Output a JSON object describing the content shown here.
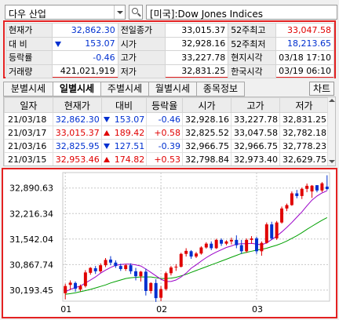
{
  "header": {
    "index_name": "다우 산업",
    "title": "[미국]:Dow Jones Indices"
  },
  "quote": {
    "rows": [
      [
        {
          "label": "현재가",
          "value": "32,862.30",
          "color": "blue"
        },
        {
          "label": "전일종가",
          "value": "33,015.37",
          "color": "black"
        },
        {
          "label": "52주최고",
          "value": "33,047.58",
          "color": "red"
        }
      ],
      [
        {
          "label": "대 비",
          "value": "153.07",
          "color": "blue",
          "arrow": "down"
        },
        {
          "label": "시가",
          "value": "32,928.16",
          "color": "black"
        },
        {
          "label": "52주최저",
          "value": "18,213.65",
          "color": "blue"
        }
      ],
      [
        {
          "label": "등락률",
          "value": "-0.46",
          "color": "blue"
        },
        {
          "label": "고가",
          "value": "33,227.78",
          "color": "black"
        },
        {
          "label": "현지시각",
          "value": "03/18 17:10",
          "color": "black"
        }
      ],
      [
        {
          "label": "거래량",
          "value": "421,021,919",
          "color": "black"
        },
        {
          "label": "저가",
          "value": "32,831.25",
          "color": "black"
        },
        {
          "label": "한국시각",
          "value": "03/19 06:10",
          "color": "black"
        }
      ]
    ]
  },
  "tabs": [
    "분별시세",
    "일별시세",
    "주별시세",
    "월별시세",
    "종목정보"
  ],
  "active_tab": 1,
  "chart_button": "차트",
  "table": {
    "columns": [
      "일자",
      "현재가",
      "대비",
      "등락율",
      "시가",
      "고가",
      "저가"
    ],
    "rows": [
      {
        "date": "21/03/18",
        "price": "32,862.30",
        "change": "153.07",
        "dir": "down",
        "rate": "-0.46",
        "open": "32,928.16",
        "high": "33,227.78",
        "low": "32,831.25"
      },
      {
        "date": "21/03/17",
        "price": "33,015.37",
        "change": "189.42",
        "dir": "up",
        "rate": "+0.58",
        "open": "32,825.52",
        "high": "33,047.58",
        "low": "32,782.18"
      },
      {
        "date": "21/03/16",
        "price": "32,825.95",
        "change": "127.51",
        "dir": "down",
        "rate": "-0.39",
        "open": "32,966.75",
        "high": "32,966.75",
        "low": "32,778.23"
      },
      {
        "date": "21/03/15",
        "price": "32,953.46",
        "change": "174.82",
        "dir": "up",
        "rate": "+0.53",
        "open": "32,798.84",
        "high": "32,973.40",
        "low": "32,629.75"
      }
    ]
  },
  "colors": {
    "up": "#e00000",
    "down": "#0030d0",
    "ma_short": "#9a00c8",
    "ma_long": "#00a000",
    "highlight": "#e32222"
  },
  "chart_data": {
    "type": "candlestick",
    "ylim": [
      29900,
      33300
    ],
    "yticks": [
      30193.45,
      30867.74,
      31542.04,
      32216.34,
      32890.63
    ],
    "ytick_labels": [
      "30,193.45",
      "30,867.74",
      "31,542.04",
      "32,216.34",
      "32,890.63"
    ],
    "xticks": [
      {
        "index": 0,
        "label": "01"
      },
      {
        "index": 19,
        "label": "02"
      },
      {
        "index": 38,
        "label": "03"
      }
    ],
    "candles": [
      [
        30110,
        30360,
        29950,
        30300
      ],
      [
        30330,
        30450,
        30200,
        30390
      ],
      [
        30380,
        30420,
        30150,
        30230
      ],
      [
        30210,
        30340,
        30160,
        30300
      ],
      [
        30300,
        30720,
        30260,
        30660
      ],
      [
        30650,
        30800,
        30600,
        30780
      ],
      [
        30770,
        30830,
        30620,
        30690
      ],
      [
        30690,
        30900,
        30650,
        30850
      ],
      [
        30850,
        31040,
        30800,
        30990
      ],
      [
        31000,
        31090,
        30850,
        30920
      ],
      [
        30920,
        30980,
        30780,
        30830
      ],
      [
        30830,
        30890,
        30700,
        30750
      ],
      [
        30750,
        30880,
        30700,
        30850
      ],
      [
        30850,
        30900,
        30620,
        30690
      ],
      [
        30690,
        30780,
        30450,
        30560
      ],
      [
        30560,
        30700,
        30420,
        30680
      ],
      [
        30680,
        30760,
        30050,
        30170
      ],
      [
        30170,
        30400,
        30100,
        30380
      ],
      [
        30380,
        30480,
        29880,
        29980
      ],
      [
        29990,
        30300,
        29900,
        30220
      ],
      [
        30220,
        30680,
        30180,
        30640
      ],
      [
        30640,
        30830,
        30580,
        30790
      ],
      [
        30790,
        30880,
        30700,
        30810
      ],
      [
        30810,
        31180,
        30790,
        31150
      ],
      [
        31150,
        31300,
        31080,
        31230
      ],
      [
        31220,
        31250,
        31020,
        31080
      ],
      [
        31080,
        31200,
        31040,
        31160
      ],
      [
        31160,
        31350,
        31130,
        31320
      ],
      [
        31320,
        31460,
        31290,
        31420
      ],
      [
        31420,
        31480,
        31250,
        31300
      ],
      [
        31300,
        31550,
        31280,
        31520
      ],
      [
        31520,
        31560,
        31360,
        31420
      ],
      [
        31420,
        31510,
        31380,
        31480
      ],
      [
        31480,
        31580,
        31400,
        31520
      ],
      [
        31520,
        31640,
        31300,
        31380
      ],
      [
        31380,
        31520,
        31150,
        31220
      ],
      [
        31220,
        31560,
        31180,
        31520
      ],
      [
        31520,
        31620,
        31420,
        31560
      ],
      [
        31560,
        31600,
        31150,
        31220
      ],
      [
        31220,
        31480,
        31100,
        31440
      ],
      [
        31440,
        31980,
        31420,
        31930
      ],
      [
        31930,
        32000,
        31520,
        31560
      ],
      [
        31560,
        32020,
        31520,
        31980
      ],
      [
        31980,
        32400,
        31950,
        32350
      ],
      [
        32350,
        32480,
        32280,
        32440
      ],
      [
        32440,
        32800,
        32420,
        32750
      ],
      [
        32750,
        32840,
        32620,
        32680
      ],
      [
        32680,
        32900,
        32600,
        32870
      ],
      [
        32870,
        33010,
        32780,
        32950
      ],
      [
        32800,
        32970,
        32630,
        32953
      ],
      [
        32966,
        32966,
        32778,
        32826
      ],
      [
        32826,
        33048,
        32782,
        33015
      ],
      [
        32928,
        33228,
        32831,
        32862
      ]
    ],
    "ma_short": [
      30150,
      30210,
      30260,
      30300,
      30380,
      30460,
      30540,
      30640,
      30720,
      30790,
      30850,
      30870,
      30880,
      30880,
      30860,
      30830,
      30750,
      30660,
      30570,
      30480,
      30420,
      30420,
      30460,
      30540,
      30640,
      30770,
      30860,
      30960,
      31050,
      31130,
      31200,
      31260,
      31320,
      31360,
      31410,
      31420,
      31420,
      31430,
      31410,
      31390,
      31440,
      31530,
      31620,
      31730,
      31850,
      31980,
      32120,
      32260,
      32420,
      32570,
      32680,
      32760,
      32820
    ],
    "ma_long": [
      30080,
      30100,
      30120,
      30150,
      30180,
      30210,
      30250,
      30290,
      30330,
      30380,
      30420,
      30460,
      30500,
      30520,
      30530,
      30540,
      30540,
      30540,
      30520,
      30500,
      30500,
      30510,
      30530,
      30570,
      30610,
      30660,
      30710,
      30760,
      30810,
      30860,
      30910,
      30960,
      31010,
      31060,
      31110,
      31160,
      31190,
      31220,
      31250,
      31270,
      31300,
      31340,
      31380,
      31430,
      31490,
      31560,
      31630,
      31710,
      31800,
      31880,
      31960,
      32040,
      32110
    ]
  }
}
